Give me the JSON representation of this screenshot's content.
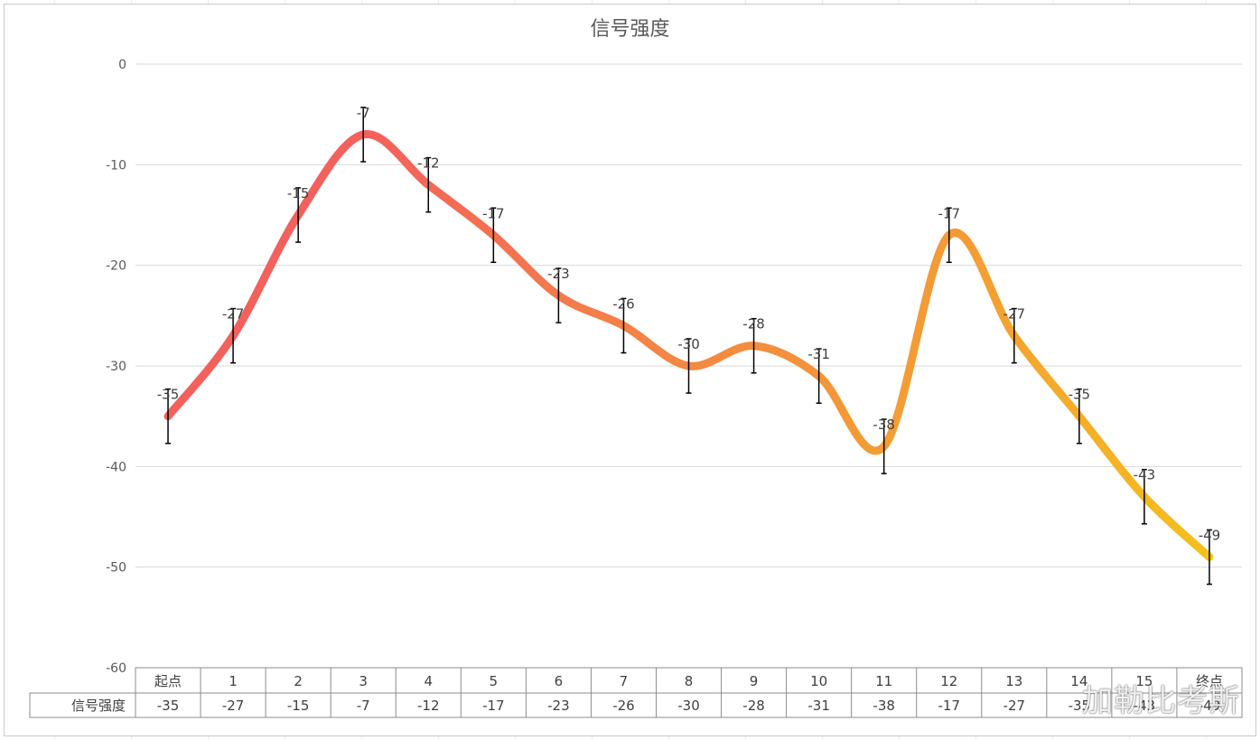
{
  "chart_data": {
    "type": "line",
    "title": "信号强度",
    "categories": [
      "起点",
      "1",
      "2",
      "3",
      "4",
      "5",
      "6",
      "7",
      "8",
      "9",
      "10",
      "11",
      "12",
      "13",
      "14",
      "15",
      "终点"
    ],
    "series": [
      {
        "name": "信号强度",
        "values": [
          -35,
          -27,
          -15,
          -7,
          -12,
          -17,
          -23,
          -26,
          -30,
          -28,
          -31,
          -38,
          -17,
          -27,
          -35,
          -43,
          -49
        ]
      }
    ],
    "data_labels": [
      "-35",
      "-27",
      "-15",
      "-7",
      "-12",
      "-17",
      "-23",
      "-26",
      "-30",
      "-28",
      "-31",
      "-38",
      "-17",
      "-27",
      "-35",
      "-43",
      "-49"
    ],
    "table_values": [
      "-35",
      "-27",
      "-15",
      "-7",
      "-12",
      "-17",
      "-23",
      "-26",
      "-30",
      "-28",
      "-31",
      "-38",
      "-17",
      "-27",
      "-35",
      "-43",
      "-49"
    ],
    "yticks": [
      "0",
      "-10",
      "-20",
      "-30",
      "-40",
      "-50",
      "-60"
    ],
    "ylim": [
      -60,
      0
    ],
    "error_bar": 2.7,
    "smooth": true,
    "grid": true,
    "legend": "data-table",
    "xlabel": "",
    "ylabel": "",
    "colors": {
      "line_start": "#f4605c",
      "line_end": "#f4c01c",
      "grid": "#d9d9d9",
      "text": "#404040"
    }
  },
  "watermark": "加勒比考斯"
}
